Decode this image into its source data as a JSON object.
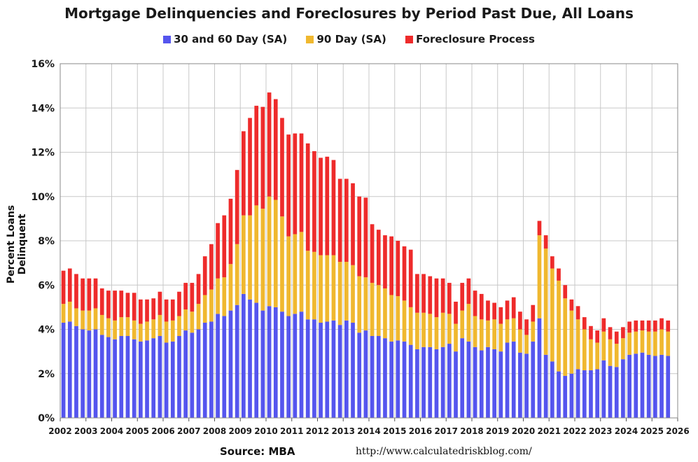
{
  "chart_data": {
    "type": "bar",
    "stacked": true,
    "title": "Mortgage Delinquencies and Foreclosures by Period Past Due, All Loans",
    "ylabel": "Percent Loans Delinquent",
    "xlabel": "",
    "source": "Source: MBA",
    "url": "http://www.calculatedriskblog.com/",
    "ylim": [
      0,
      16
    ],
    "y_ticks": [
      "0%",
      "2%",
      "4%",
      "6%",
      "8%",
      "10%",
      "12%",
      "14%",
      "16%"
    ],
    "x_ticks": [
      "2002",
      "2003",
      "2004",
      "2005",
      "2006",
      "2007",
      "2008",
      "2009",
      "2010",
      "2011",
      "2012",
      "2013",
      "2014",
      "2015",
      "2016",
      "2017",
      "2018",
      "2019",
      "2020",
      "2021",
      "2022",
      "2023",
      "2024",
      "2025",
      "2026"
    ],
    "x_start_year": 2002,
    "grid": true,
    "legend_position": "top-center",
    "colors": {
      "30_60": "#5555ee",
      "90": "#f0b82f",
      "foreclosure": "#ee2b2b"
    },
    "series": [
      {
        "name": "30 and 60 Day (SA)",
        "values": [
          4.3,
          4.35,
          4.15,
          4.0,
          3.95,
          4.0,
          3.75,
          3.65,
          3.55,
          3.7,
          3.7,
          3.55,
          3.45,
          3.5,
          3.6,
          3.7,
          3.4,
          3.45,
          3.7,
          3.95,
          3.85,
          4.0,
          4.3,
          4.35,
          4.7,
          4.6,
          4.85,
          5.1,
          5.6,
          5.35,
          5.2,
          4.85,
          5.05,
          5.0,
          4.8,
          4.6,
          4.7,
          4.8,
          4.45,
          4.45,
          4.3,
          4.35,
          4.4,
          4.2,
          4.4,
          4.3,
          3.85,
          3.95,
          3.7,
          3.7,
          3.6,
          3.45,
          3.5,
          3.45,
          3.3,
          3.1,
          3.2,
          3.2,
          3.1,
          3.2,
          3.35,
          3.0,
          3.6,
          3.45,
          3.2,
          3.05,
          3.2,
          3.1,
          3.0,
          3.4,
          3.45,
          2.95,
          2.9,
          3.45,
          4.5,
          2.85,
          2.55,
          2.1,
          1.9,
          2.0,
          2.2,
          2.15,
          2.15,
          2.2,
          2.6,
          2.35,
          2.3,
          2.65,
          2.85,
          2.9,
          2.95,
          2.85,
          2.8,
          2.85,
          2.8
        ]
      },
      {
        "name": "90 Day (SA)",
        "values": [
          0.85,
          0.9,
          0.8,
          0.85,
          0.9,
          0.95,
          0.9,
          0.85,
          0.85,
          0.85,
          0.85,
          0.85,
          0.8,
          0.85,
          0.85,
          0.95,
          0.95,
          0.95,
          0.9,
          0.95,
          0.95,
          1.15,
          1.25,
          1.45,
          1.6,
          1.75,
          2.1,
          2.75,
          3.55,
          3.8,
          4.4,
          4.6,
          4.95,
          4.85,
          4.3,
          3.6,
          3.6,
          3.6,
          3.1,
          3.05,
          3.05,
          3.0,
          2.95,
          2.85,
          2.65,
          2.6,
          2.55,
          2.4,
          2.4,
          2.3,
          2.25,
          2.1,
          2.0,
          1.85,
          1.7,
          1.65,
          1.55,
          1.5,
          1.45,
          1.55,
          1.35,
          1.25,
          1.25,
          1.7,
          1.4,
          1.4,
          1.2,
          1.35,
          1.25,
          1.05,
          1.05,
          1.05,
          0.85,
          0.9,
          3.75,
          4.8,
          4.2,
          4.1,
          3.5,
          2.85,
          2.25,
          1.85,
          1.4,
          1.2,
          1.3,
          1.2,
          1.05,
          0.95,
          1.0,
          1.0,
          1.0,
          1.05,
          1.1,
          1.15,
          1.1
        ]
      },
      {
        "name": "Foreclosure Process",
        "values": [
          1.5,
          1.5,
          1.55,
          1.45,
          1.45,
          1.35,
          1.2,
          1.25,
          1.35,
          1.2,
          1.1,
          1.25,
          1.1,
          1.0,
          0.95,
          1.05,
          1.0,
          0.95,
          1.1,
          1.2,
          1.3,
          1.35,
          1.75,
          2.05,
          2.5,
          2.8,
          2.95,
          3.35,
          3.8,
          4.4,
          4.5,
          4.6,
          4.7,
          4.55,
          4.45,
          4.6,
          4.55,
          4.45,
          4.85,
          4.55,
          4.4,
          4.45,
          4.3,
          3.75,
          3.75,
          3.7,
          3.6,
          3.6,
          2.65,
          2.5,
          2.4,
          2.65,
          2.5,
          2.45,
          2.6,
          1.75,
          1.75,
          1.7,
          1.75,
          1.55,
          1.4,
          1.0,
          1.25,
          1.15,
          1.15,
          1.15,
          0.9,
          0.75,
          0.75,
          0.85,
          0.95,
          0.8,
          0.7,
          0.75,
          0.65,
          0.6,
          0.55,
          0.55,
          0.6,
          0.5,
          0.6,
          0.55,
          0.6,
          0.55,
          0.6,
          0.55,
          0.55,
          0.5,
          0.5,
          0.5,
          0.45,
          0.5,
          0.5,
          0.5,
          0.5
        ]
      }
    ]
  }
}
